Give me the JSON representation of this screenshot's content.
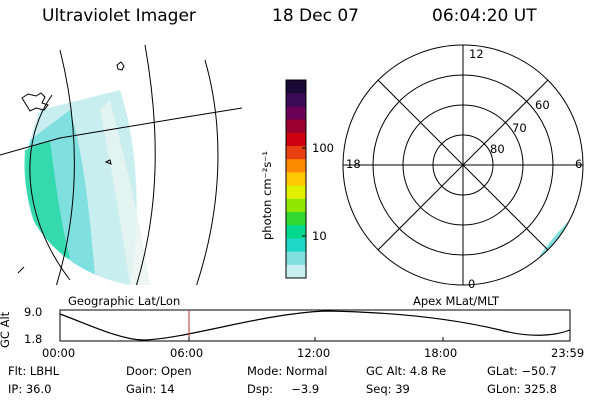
{
  "header": {
    "instrument": "Ultraviolet Imager",
    "date": "18 Dec 07",
    "time": "06:04:20 UT"
  },
  "geo_panel": {
    "label": "Geographic Lat/Lon"
  },
  "polar_panel": {
    "label": "Apex MLat/MLT",
    "mlt_labels": {
      "top": "12",
      "left": "18",
      "right": "6",
      "bottom": "0"
    },
    "lat_labels": [
      "60",
      "70",
      "80"
    ]
  },
  "colorbar": {
    "unit_label": "photon cm⁻²s⁻¹",
    "ticks": [
      "100",
      "10"
    ],
    "colors": [
      "#1a0a33",
      "#3a0a55",
      "#6a0055",
      "#9a0030",
      "#cc0010",
      "#e84010",
      "#ff8c00",
      "#ffc800",
      "#e0f000",
      "#90e800",
      "#30d830",
      "#00d890",
      "#20d8c8",
      "#80e0e0",
      "#c8eef0"
    ]
  },
  "altitude_plot": {
    "ylabel": "GC Alt",
    "ymax_label": "9.0",
    "ymin_label": "1.8",
    "xticks": [
      "00:00",
      "06:00",
      "12:00",
      "18:00",
      "23:59"
    ]
  },
  "info": {
    "filter": "Flt: LBHL",
    "door": "Door: Open",
    "mode": "Mode: Normal",
    "gc_alt": "GC Alt: 4.8 Re",
    "glat": "GLat: −50.7",
    "ip": "IP: 36.0",
    "gain": "Gain: 14",
    "dsp": "Dsp:     −3.9",
    "seq": "Seq: 39",
    "glon": "GLon: 325.8"
  }
}
